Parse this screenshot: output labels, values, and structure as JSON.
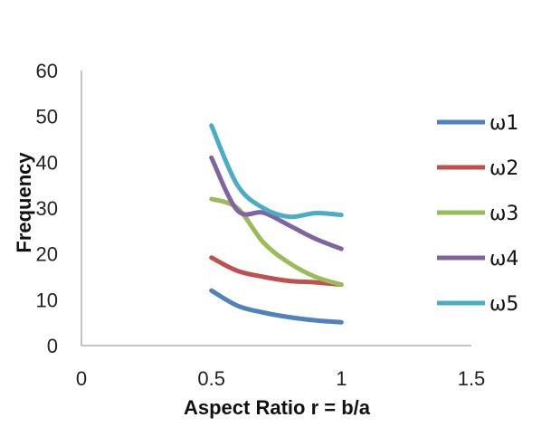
{
  "chart_data": {
    "type": "line",
    "title": "",
    "xlabel": "Aspect Ratio r = b/a",
    "ylabel": "Frequency",
    "xlim": [
      0,
      1.5
    ],
    "ylim": [
      0,
      60
    ],
    "xticks": [
      0,
      0.5,
      1,
      1.5
    ],
    "xtick_labels": [
      "0",
      "0.5",
      "1",
      "1.5"
    ],
    "yticks": [
      0,
      10,
      20,
      30,
      40,
      50,
      60
    ],
    "ytick_labels": [
      "0",
      "10",
      "20",
      "30",
      "40",
      "50",
      "60"
    ],
    "grid": false,
    "legend_position": "right",
    "series": [
      {
        "name": "ω1",
        "color": "#4f81bd",
        "x": [
          0.5,
          0.6,
          0.7,
          0.8,
          0.9,
          1.0
        ],
        "y": [
          12,
          8.7,
          7.2,
          6.2,
          5.5,
          5.1
        ]
      },
      {
        "name": "ω2",
        "color": "#c0504d",
        "x": [
          0.5,
          0.6,
          0.7,
          0.8,
          0.9,
          1.0
        ],
        "y": [
          19.2,
          16.3,
          15.0,
          14.1,
          13.8,
          13.3
        ]
      },
      {
        "name": "ω3",
        "color": "#9bbb59",
        "x": [
          0.5,
          0.6,
          0.7,
          0.8,
          0.9,
          1.0
        ],
        "y": [
          32,
          30,
          22.5,
          18,
          15,
          13.3
        ]
      },
      {
        "name": "ω4",
        "color": "#8064a2",
        "x": [
          0.5,
          0.6,
          0.7,
          0.8,
          0.9,
          1.0
        ],
        "y": [
          41,
          29.5,
          29.0,
          26.2,
          23.3,
          21.1
        ]
      },
      {
        "name": "ω5",
        "color": "#4bacc6",
        "x": [
          0.5,
          0.6,
          0.7,
          0.8,
          0.9,
          1.0
        ],
        "y": [
          48,
          35,
          30,
          28.1,
          28.9,
          28.5
        ]
      }
    ]
  }
}
